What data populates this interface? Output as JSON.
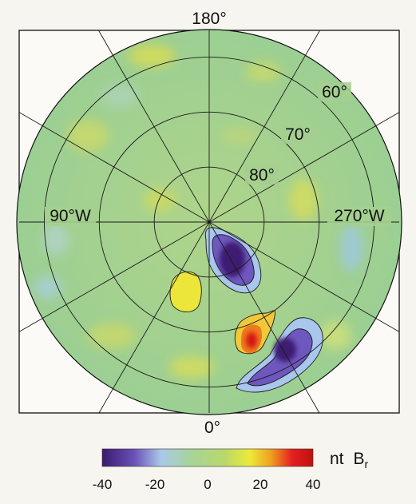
{
  "chart_data": {
    "type": "heatmap",
    "projection": "polar-stereographic",
    "title": "",
    "longitude_labels": {
      "top": "180°",
      "bottom": "0°",
      "left": "90°W",
      "right": "270°W"
    },
    "latitude_labels": [
      "60°",
      "70°",
      "80°"
    ],
    "latitude_circles_deg": [
      60,
      70,
      80
    ],
    "meridian_step_deg": 30,
    "colorbar": {
      "label_prefix": "nt",
      "label_symbol": "B",
      "label_subscript": "r",
      "range": [
        -40,
        40
      ],
      "ticks": [
        {
          "value": -40,
          "label": "-40"
        },
        {
          "value": -20,
          "label": "-20"
        },
        {
          "value": 0,
          "label": "0"
        },
        {
          "value": 20,
          "label": "20"
        },
        {
          "value": 40,
          "label": "40"
        }
      ],
      "colors": [
        "#3b1a6e",
        "#6a4fb6",
        "#a9c9ea",
        "#9fcf8e",
        "#e8e63a",
        "#f0a020",
        "#e52020",
        "#c01010"
      ]
    },
    "anomalies": [
      {
        "sign": "negative",
        "peak_nT": -40,
        "colatitude_deg": 11,
        "longitude_west_deg": 330
      },
      {
        "sign": "positive",
        "peak_nT": 18,
        "colatitude_deg": 13,
        "longitude_west_deg": 25
      },
      {
        "sign": "positive",
        "peak_nT": 38,
        "colatitude_deg": 24,
        "longitude_west_deg": 338
      },
      {
        "sign": "negative",
        "peak_nT": -36,
        "colatitude_deg": 26,
        "longitude_west_deg": 323
      },
      {
        "sign": "negative",
        "peak_nT": -25,
        "colatitude_deg": 31,
        "longitude_west_deg": 328
      }
    ]
  }
}
